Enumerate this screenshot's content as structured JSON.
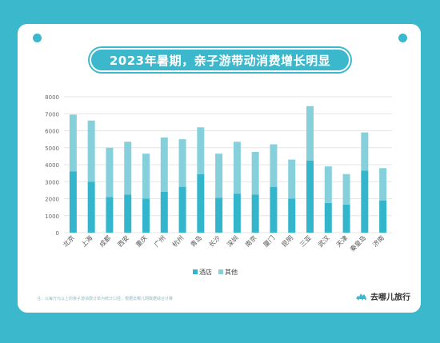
{
  "title": "2023年暑期，亲子游带动消费增长明显",
  "footnote": "注：以每万元以上的亲子游消费订单为统计口径，根据去哪儿网数据综合计算",
  "brand": {
    "name": "去哪儿旅行",
    "icon": "camel-logo-icon"
  },
  "colors": {
    "background": "#3cb8cc",
    "hotel": "#33b6cc",
    "other": "#86d0dc",
    "grid": "#e6e6e6",
    "tick": "#666666"
  },
  "chart_data": {
    "type": "bar",
    "stacked": true,
    "categories": [
      "北京",
      "上海",
      "成都",
      "西安",
      "重庆",
      "广州",
      "杭州",
      "青岛",
      "长沙",
      "深圳",
      "南京",
      "厦门",
      "昆明",
      "三亚",
      "武汉",
      "天津",
      "秦皇岛",
      "济南"
    ],
    "series": [
      {
        "name": "酒店",
        "values": [
          3600,
          3000,
          2100,
          2250,
          2000,
          2400,
          2700,
          3450,
          2050,
          2300,
          2250,
          2700,
          2000,
          4250,
          1750,
          1650,
          3650,
          1900
        ]
      },
      {
        "name": "其他",
        "values": [
          3350,
          3600,
          2900,
          3100,
          2650,
          3200,
          2800,
          2750,
          2600,
          3050,
          2500,
          2500,
          2300,
          3200,
          2150,
          1800,
          2250,
          1900
        ]
      }
    ],
    "ylim": [
      0,
      8000
    ],
    "yticks": [
      0,
      1000,
      2000,
      3000,
      4000,
      5000,
      6000,
      7000,
      8000
    ],
    "grid": true,
    "legend": "bottom"
  }
}
